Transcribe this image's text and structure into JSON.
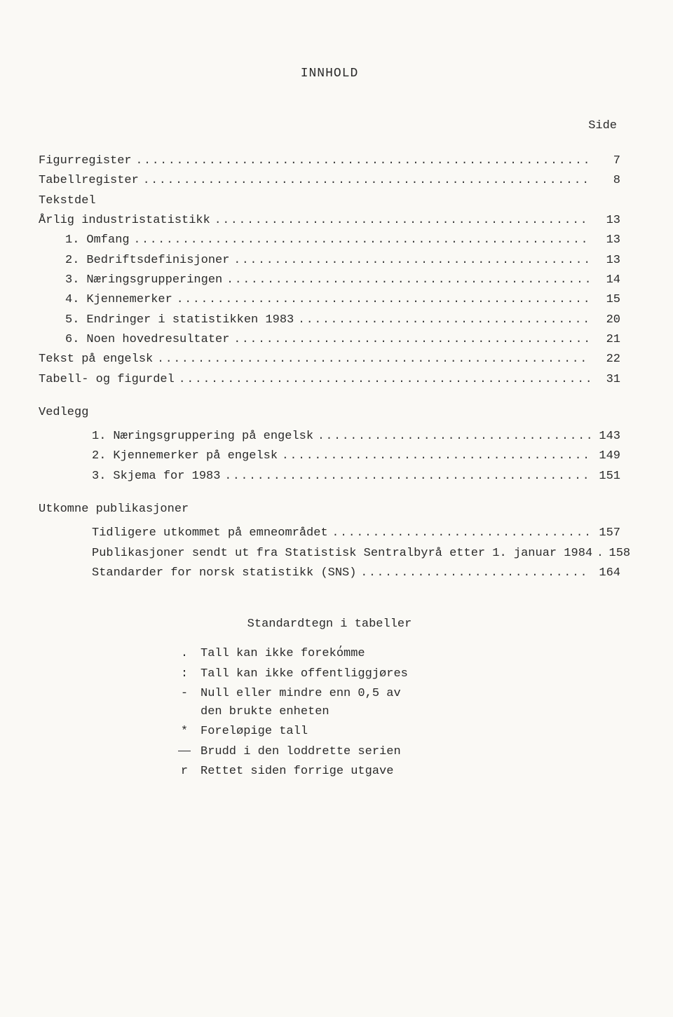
{
  "title": "INNHOLD",
  "side_label": "Side",
  "leader_fill": "...............................................................................................................................................................",
  "toc": [
    {
      "indent": 0,
      "num": "",
      "label": "Figurregister",
      "page": "7",
      "leader": true
    },
    {
      "indent": 0,
      "num": "",
      "label": "Tabellregister",
      "page": "8",
      "leader": true
    },
    {
      "indent": 0,
      "num": "",
      "label": "Tekstdel",
      "page": "",
      "leader": false
    },
    {
      "indent": 0,
      "num": "",
      "label": "Årlig industristatistikk",
      "page": "13",
      "leader": true
    },
    {
      "indent": 1,
      "num": "1.",
      "label": "Omfang",
      "page": "13",
      "leader": true
    },
    {
      "indent": 1,
      "num": "2.",
      "label": "Bedriftsdefinisjoner",
      "page": "13",
      "leader": true
    },
    {
      "indent": 1,
      "num": "3.",
      "label": "Næringsgrupperingen",
      "page": "14",
      "leader": true
    },
    {
      "indent": 1,
      "num": "4.",
      "label": "Kjennemerker",
      "page": "15",
      "leader": true
    },
    {
      "indent": 1,
      "num": "5.",
      "label": "Endringer i statistikken 1983",
      "page": "20",
      "leader": true
    },
    {
      "indent": 1,
      "num": "6.",
      "label": "Noen hovedresultater",
      "page": "21",
      "leader": true
    },
    {
      "indent": 0,
      "num": "",
      "label": "Tekst på engelsk",
      "page": "22",
      "leader": true
    },
    {
      "indent": 0,
      "num": "",
      "label": "Tabell- og figurdel",
      "page": "31",
      "leader": true
    }
  ],
  "vedlegg_head": "Vedlegg",
  "vedlegg": [
    {
      "indent": 2,
      "num": "1.",
      "label": "Næringsgruppering på engelsk",
      "page": "143",
      "leader": true
    },
    {
      "indent": 2,
      "num": "2.",
      "label": "Kjennemerker på engelsk",
      "page": "149",
      "leader": true
    },
    {
      "indent": 2,
      "num": "3.",
      "label": "Skjema for 1983",
      "page": "151",
      "leader": true
    }
  ],
  "utkomne_head": "Utkomne publikasjoner",
  "utkomne": [
    {
      "indent": 2,
      "num": "",
      "label": "Tidligere utkommet på emneområdet",
      "page": "157",
      "leader": true
    },
    {
      "indent": 2,
      "num": "",
      "label": "Publikasjoner sendt ut fra Statistisk Sentralbyrå etter 1. januar 1984",
      "page": "158",
      "leader": true
    },
    {
      "indent": 2,
      "num": "",
      "label": "Standarder for norsk statistikk (SNS)",
      "page": "164",
      "leader": true
    }
  ],
  "legend_title": "Standardtegn i tabeller",
  "legend": [
    {
      "sym": ".",
      "desc": "Tall kan ikke forekomme",
      "tick": true
    },
    {
      "sym": ":",
      "desc": "Tall kan ikke offentliggjøres"
    },
    {
      "sym": "-",
      "desc": "Null eller mindre enn 0,5 av\nden brukte enheten"
    },
    {
      "sym": "*",
      "desc": "Foreløpige tall"
    },
    {
      "sym": "DASH",
      "desc": "Brudd i den loddrette serien"
    },
    {
      "sym": "r",
      "desc": "Rettet siden forrige utgave"
    }
  ],
  "colors": {
    "background": "#faf9f5",
    "text": "#2a2a2a"
  },
  "typography": {
    "font_family": "Courier New",
    "title_size_pt": 13,
    "body_size_pt": 12
  }
}
